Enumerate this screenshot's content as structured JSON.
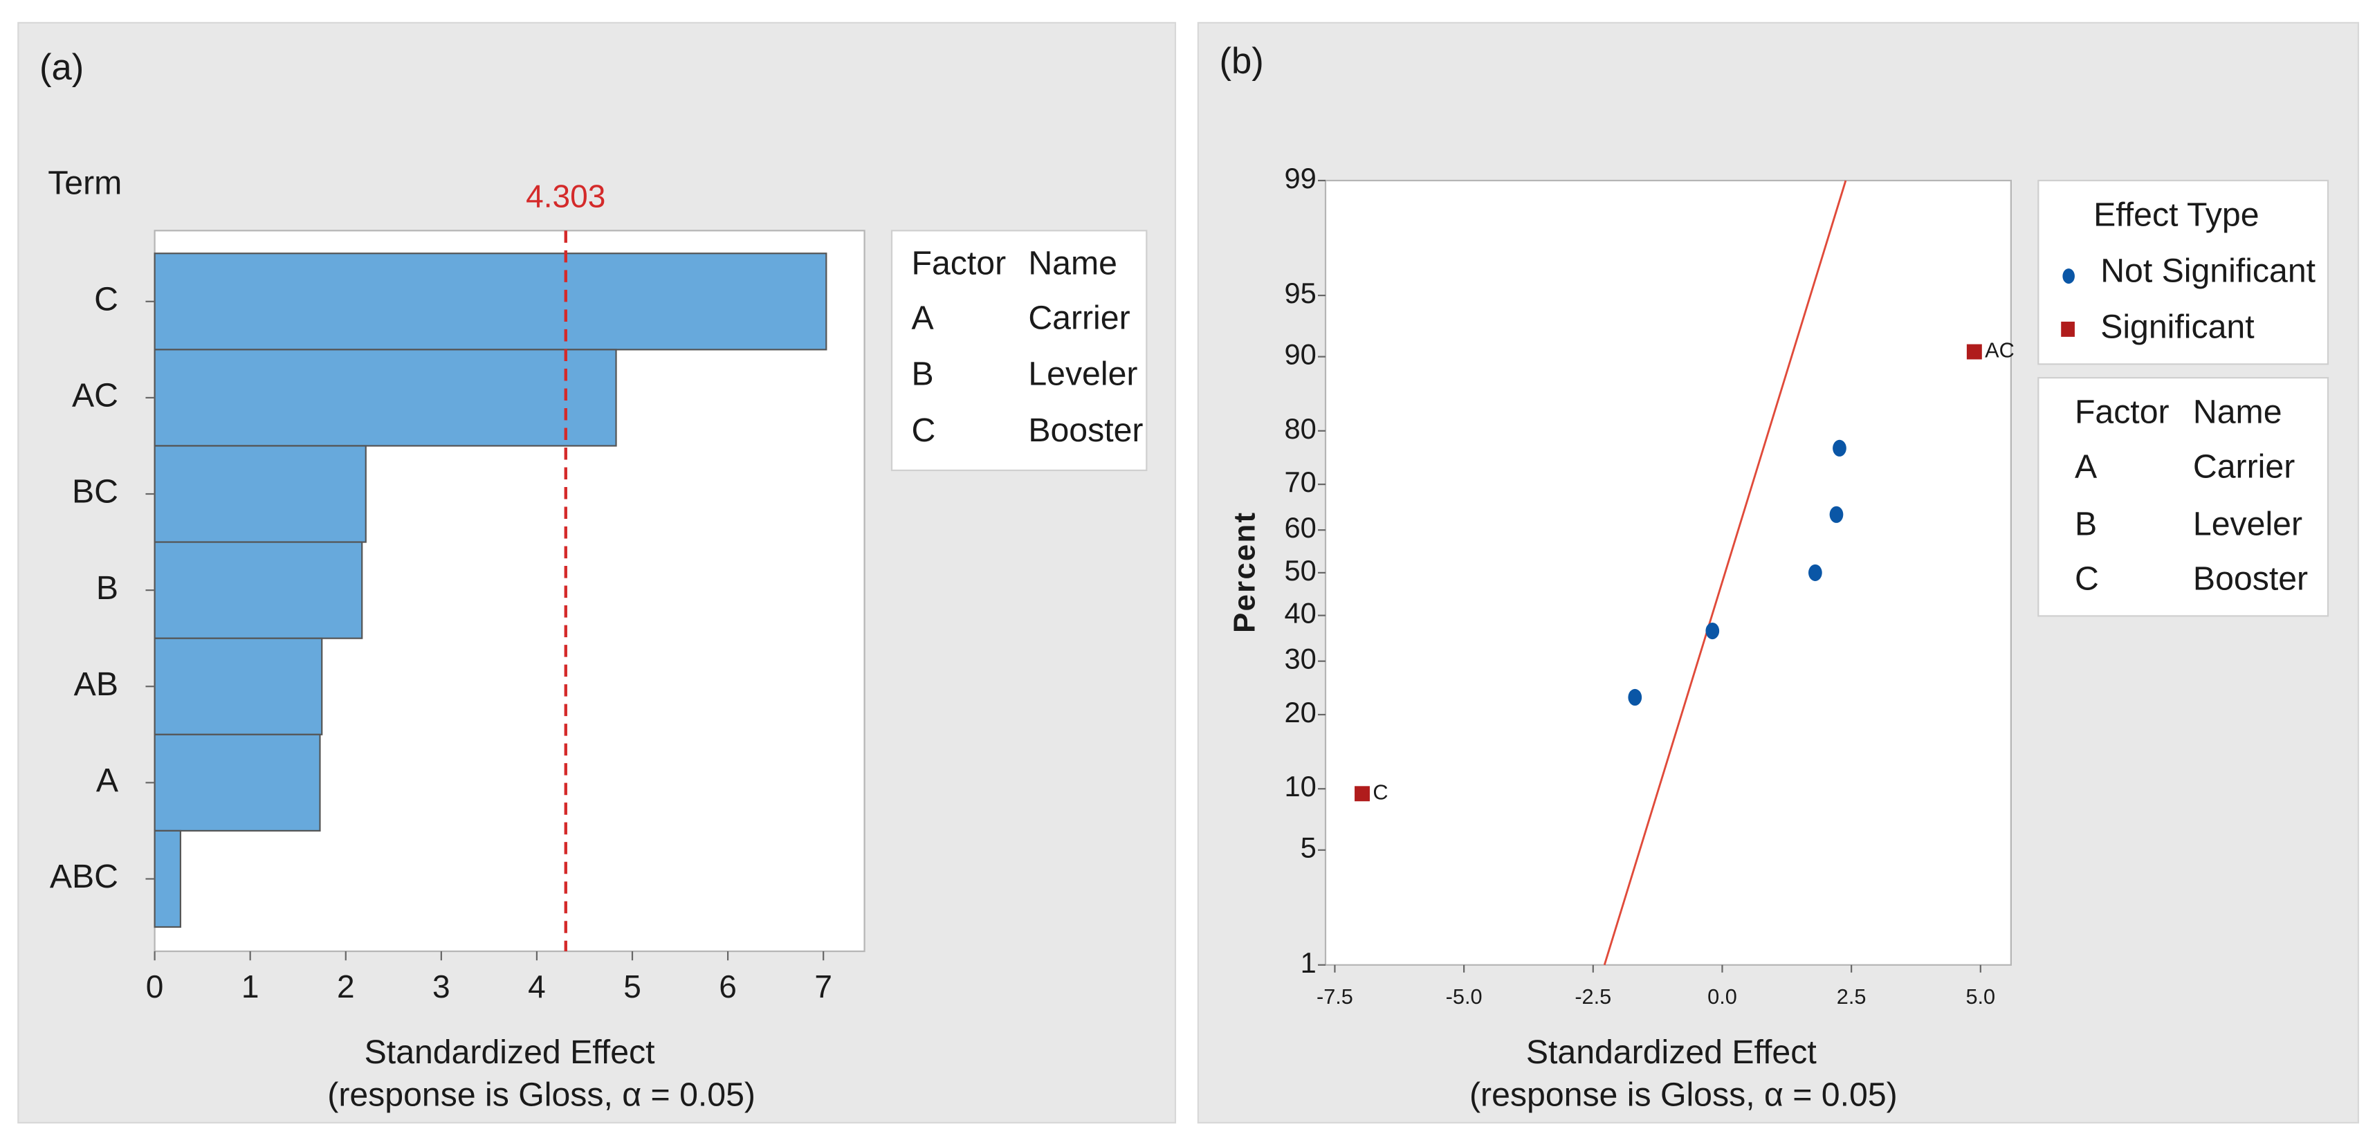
{
  "chart_data": [
    {
      "type": "bar",
      "orientation": "horizontal",
      "panel_label": "(a)",
      "axis_label": "Term",
      "xlabel": "Standardized Effect",
      "subtitle": "(response is Gloss, α = 0.05)",
      "categories": [
        "C",
        "AC",
        "BC",
        "B",
        "AB",
        "A",
        "ABC"
      ],
      "values": [
        7.03,
        4.83,
        2.21,
        2.17,
        1.75,
        1.73,
        0.27
      ],
      "color": "#67a9dc",
      "xlim": [
        0,
        7.43
      ],
      "xticks": [
        0,
        1,
        2,
        3,
        4,
        5,
        6,
        7
      ],
      "reference_line": 4.303,
      "reference_color": "#d42a2a",
      "factor_table": {
        "header": [
          "Factor",
          "Name"
        ],
        "rows": [
          [
            "A",
            "Carrier"
          ],
          [
            "B",
            "Leveler"
          ],
          [
            "C",
            "Booster"
          ]
        ]
      }
    },
    {
      "type": "scatter",
      "panel_label": "(b)",
      "yscale": "probability",
      "ylabel": "Percent",
      "xlabel": "Standardized Effect",
      "subtitle": "(response is Gloss, α = 0.05)",
      "legend_title": "Effect Type",
      "series": [
        {
          "name": "Not Significant",
          "color": "#0a56a6",
          "marker": "circle",
          "x": [
            -1.69,
            -0.19,
            1.8,
            2.21,
            2.27
          ],
          "values": [
            23,
            36.5,
            50,
            63.5,
            77
          ]
        },
        {
          "name": "Significant",
          "color": "#b01c1c",
          "marker": "square",
          "x": [
            -6.97,
            4.88
          ],
          "values": [
            9.5,
            90.5
          ],
          "point_labels": [
            "C",
            "AC"
          ]
        }
      ],
      "fit_line": {
        "x": [
          -2.28,
          2.39
        ],
        "values": [
          1,
          99
        ],
        "color": "#e04a3a"
      },
      "xlim": [
        -7.68,
        5.59
      ],
      "xticks": [
        -7.5,
        {
          "value": -5,
          "label": "-5.0"
        },
        -2.5,
        {
          "value": 0,
          "label": "0.0"
        },
        2.5,
        {
          "value": 5,
          "label": "5.0"
        }
      ],
      "ylim": [
        1,
        99
      ],
      "yticks": [
        1,
        5,
        10,
        20,
        30,
        40,
        50,
        60,
        70,
        80,
        90,
        95,
        99
      ],
      "factor_table": {
        "header": [
          "Factor",
          "Name"
        ],
        "rows": [
          [
            "A",
            "Carrier"
          ],
          [
            "B",
            "Leveler"
          ],
          [
            "C",
            "Booster"
          ]
        ]
      }
    }
  ]
}
